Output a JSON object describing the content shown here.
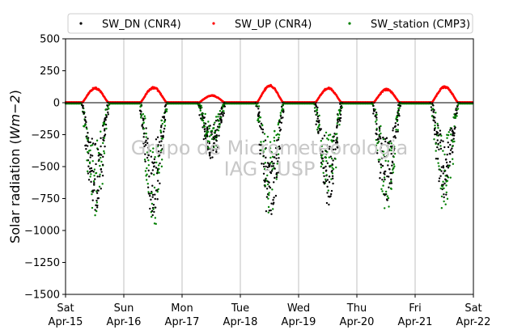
{
  "chart_data": {
    "type": "scatter",
    "ylabel": "Solar radiation (Wm−2)",
    "ylabel_parts": {
      "main": "Solar radiation (",
      "unit_W": "W",
      "unit_m": "m",
      "unit_exp": "−2",
      "close": ")"
    },
    "ylim": [
      -1500,
      500
    ],
    "yticks": [
      500,
      250,
      0,
      -250,
      -500,
      -750,
      -1000,
      -1250,
      -1500
    ],
    "ytick_labels": [
      "500",
      "250",
      "0",
      "−250",
      "−500",
      "−750",
      "−1000",
      "−1250",
      "−1500"
    ],
    "xlim": [
      "2023-04-15",
      "2023-04-22"
    ],
    "xticks": [
      {
        "day": "Sat",
        "date": "Apr-15"
      },
      {
        "day": "Sun",
        "date": "Apr-16"
      },
      {
        "day": "Mon",
        "date": "Apr-17"
      },
      {
        "day": "Tue",
        "date": "Apr-18"
      },
      {
        "day": "Wed",
        "date": "Apr-19"
      },
      {
        "day": "Thu",
        "date": "Apr-20"
      },
      {
        "day": "Fri",
        "date": "Apr-21"
      },
      {
        "day": "Sat",
        "date": "Apr-22"
      }
    ],
    "grid": "vertical",
    "legend_position": "top",
    "watermark": [
      "Grupo de Micrometeorologia",
      "IAG - USP"
    ],
    "zero_line": 0,
    "series": [
      {
        "name": "SW_DN (CNR4)",
        "color": "#000000",
        "daily_min": [
          -870,
          -900,
          -460,
          -940,
          -800,
          -780,
          -740
        ]
      },
      {
        "name": "SW_UP (CNR4)",
        "color": "#ff0000",
        "daily_max": [
          120,
          125,
          60,
          140,
          120,
          110,
          130
        ]
      },
      {
        "name": "SW_station (CMP3)",
        "color": "#008000",
        "daily_min": [
          -950,
          -990,
          -400,
          -870,
          -800,
          -860,
          -880
        ]
      }
    ]
  }
}
